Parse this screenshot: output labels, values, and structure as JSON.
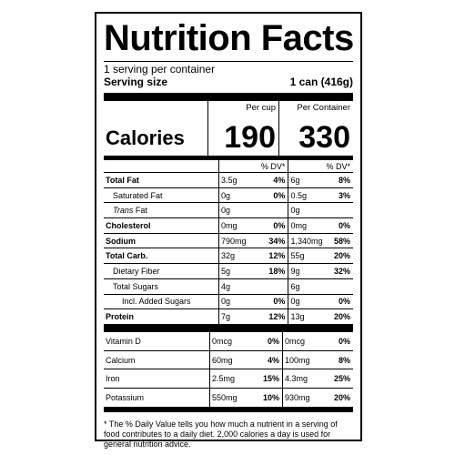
{
  "title": "Nutrition Facts",
  "servings_per_container": "1 serving per container",
  "serving_size_label": "Serving size",
  "serving_size_value": "1 can (416g)",
  "calories": {
    "label": "Calories",
    "per_cup_header": "Per cup",
    "per_container_header": "Per Container",
    "per_cup": "190",
    "per_container": "330"
  },
  "dv_header": "% DV*",
  "nutrients": [
    {
      "name": "Total Fat",
      "cup_amt": "3.5g",
      "cup_dv": "4%",
      "cont_amt": "6g",
      "cont_dv": "8%"
    },
    {
      "name": "Saturated Fat",
      "cup_amt": "0g",
      "cup_dv": "0%",
      "cont_amt": "0.5g",
      "cont_dv": "3%"
    },
    {
      "name": "Trans Fat",
      "name_prefix": "Trans",
      "name_suffix": " Fat",
      "cup_amt": "0g",
      "cup_dv": "",
      "cont_amt": "0g",
      "cont_dv": ""
    },
    {
      "name": "Cholesterol",
      "cup_amt": "0mg",
      "cup_dv": "0%",
      "cont_amt": "0mg",
      "cont_dv": "0%"
    },
    {
      "name": "Sodium",
      "cup_amt": "790mg",
      "cup_dv": "34%",
      "cont_amt": "1,340mg",
      "cont_dv": "58%"
    },
    {
      "name": "Total Carb.",
      "cup_amt": "32g",
      "cup_dv": "12%",
      "cont_amt": "55g",
      "cont_dv": "20%"
    },
    {
      "name": "Dietary Fiber",
      "cup_amt": "5g",
      "cup_dv": "18%",
      "cont_amt": "9g",
      "cont_dv": "32%"
    },
    {
      "name": "Total Sugars",
      "cup_amt": "4g",
      "cup_dv": "",
      "cont_amt": "6g",
      "cont_dv": ""
    },
    {
      "name": "Incl. Added Sugars",
      "cup_amt": "0g",
      "cup_dv": "0%",
      "cont_amt": "0g",
      "cont_dv": "0%"
    },
    {
      "name": "Protein",
      "cup_amt": "7g",
      "cup_dv": "12%",
      "cont_amt": "13g",
      "cont_dv": "20%"
    }
  ],
  "vitamins": [
    {
      "name": "Vitamin D",
      "cup_amt": "0mcg",
      "cup_dv": "0%",
      "cont_amt": "0mcg",
      "cont_dv": "0%"
    },
    {
      "name": "Calcium",
      "cup_amt": "60mg",
      "cup_dv": "4%",
      "cont_amt": "100mg",
      "cont_dv": "8%"
    },
    {
      "name": "Iron",
      "cup_amt": "2.5mg",
      "cup_dv": "15%",
      "cont_amt": "4.3mg",
      "cont_dv": "25%"
    },
    {
      "name": "Potassium",
      "cup_amt": "550mg",
      "cup_dv": "10%",
      "cont_amt": "930mg",
      "cont_dv": "20%"
    }
  ],
  "footnote": "* The % Daily Value tells you how much a nutrient in a serving of food contributes to a daily diet. 2,000 calories a day is used for general nutrition advice."
}
